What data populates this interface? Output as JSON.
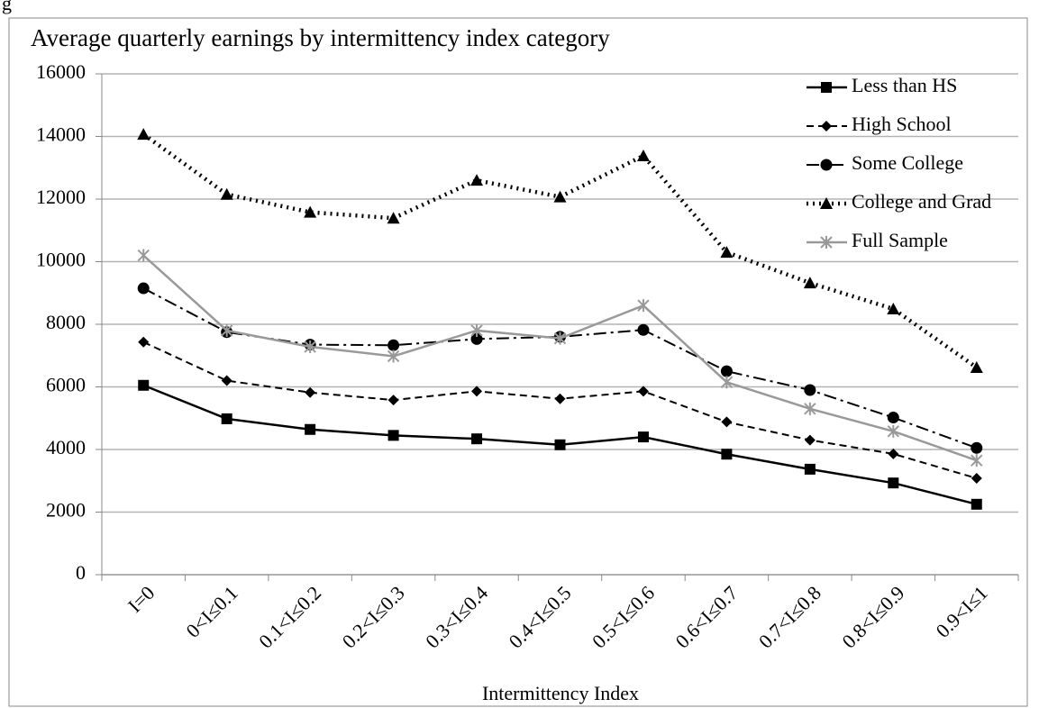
{
  "annotation": "g",
  "chart_data": {
    "type": "line",
    "title": "Average quarterly earnings by intermittency index category",
    "x_label": "Intermittency Index",
    "categories": [
      "I=0",
      "0<I≤0.1",
      "0.1<I≤0.2",
      "0.2<I≤0.3",
      "0.3<I≤0.4",
      "0.4<I≤0.5",
      "0.5<I≤0.6",
      "0.6<I≤0.7",
      "0.7<I≤0.8",
      "0.8<I≤0.9",
      "0.9<I≤1"
    ],
    "ylim": [
      0,
      16000
    ],
    "yticks": [
      0,
      2000,
      4000,
      6000,
      8000,
      10000,
      12000,
      14000,
      16000
    ],
    "grid": true,
    "legend": "top-right",
    "series": [
      {
        "name": "Less than HS",
        "color": "#000000",
        "dash": "solid",
        "marker": "square",
        "values": [
          6050,
          4980,
          4640,
          4450,
          4340,
          4150,
          4400,
          3850,
          3370,
          2930,
          2250
        ]
      },
      {
        "name": "High School",
        "color": "#000000",
        "dash": "dashed",
        "marker": "diamond",
        "values": [
          7430,
          6200,
          5820,
          5580,
          5860,
          5620,
          5860,
          4880,
          4300,
          3860,
          3080
        ]
      },
      {
        "name": "Some College",
        "color": "#000000",
        "dash": "dashdot",
        "marker": "circle",
        "values": [
          9150,
          7750,
          7350,
          7330,
          7530,
          7600,
          7820,
          6500,
          5900,
          5020,
          4050
        ]
      },
      {
        "name": "College and Grad",
        "color": "#000000",
        "dash": "dotted",
        "marker": "triangle",
        "values": [
          14070,
          12150,
          11580,
          11390,
          12600,
          12070,
          13380,
          10300,
          9320,
          8490,
          6620
        ]
      },
      {
        "name": "Full Sample",
        "color": "#999999",
        "dash": "solid",
        "marker": "star",
        "values": [
          10200,
          7800,
          7280,
          6980,
          7800,
          7550,
          8600,
          6150,
          5300,
          4580,
          3650
        ]
      }
    ]
  }
}
